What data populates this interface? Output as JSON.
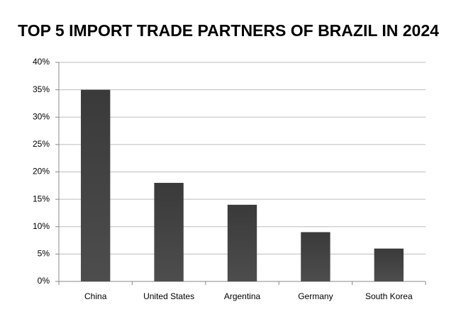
{
  "chart_data": {
    "type": "bar",
    "title": "TOP 5 IMPORT TRADE PARTNERS OF BRAZIL IN 2024",
    "categories": [
      "China",
      "United States",
      "Argentina",
      "Germany",
      "South Korea"
    ],
    "values": [
      35,
      18,
      14,
      9,
      6
    ],
    "color": "#4d4d4d",
    "ylim": [
      0,
      40
    ],
    "yticks": [
      {
        "value": 0,
        "label": "0%"
      },
      {
        "value": 5,
        "label": "5%"
      },
      {
        "value": 10,
        "label": "10%"
      },
      {
        "value": 15,
        "label": "15%"
      },
      {
        "value": 20,
        "label": "20%"
      },
      {
        "value": 25,
        "label": "25%"
      },
      {
        "value": 30,
        "label": "30%"
      },
      {
        "value": 35,
        "label": "35%"
      },
      {
        "value": 40,
        "label": "40%"
      }
    ],
    "grid": true
  }
}
